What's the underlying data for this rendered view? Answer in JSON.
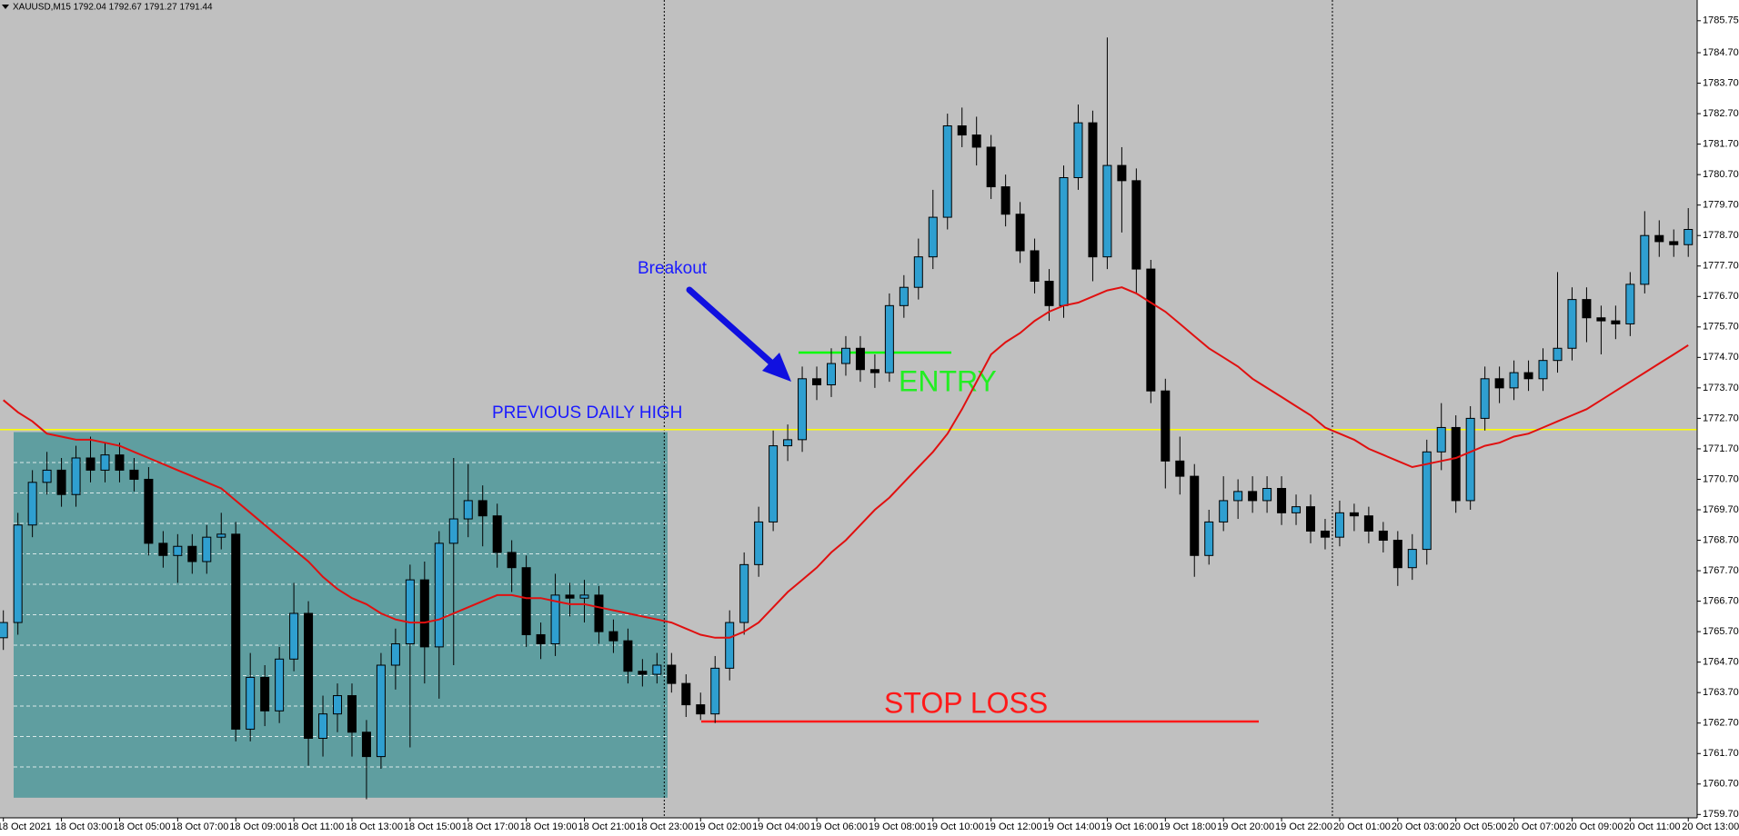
{
  "chart_data": {
    "type": "candlestick",
    "title": "XAUUSD,M15  1792.04 1792.67 1791.27 1791.44",
    "categories": [
      "18 Oct 2021",
      null,
      null,
      null,
      "18 Oct 03:00",
      null,
      null,
      null,
      "18 Oct 05:00",
      null,
      null,
      null,
      "18 Oct 07:00",
      null,
      null,
      null,
      "18 Oct 09:00",
      null,
      null,
      null,
      "18 Oct 11:00",
      null,
      null,
      null,
      "18 Oct 13:00",
      null,
      null,
      null,
      "18 Oct 15:00",
      null,
      null,
      null,
      "18 Oct 17:00",
      null,
      null,
      null,
      "18 Oct 19:00",
      null,
      null,
      null,
      "18 Oct 21:00",
      null,
      null,
      null,
      "18 Oct 23:00",
      null,
      null,
      null,
      "19 Oct 02:00",
      null,
      null,
      null,
      "19 Oct 04:00",
      null,
      null,
      null,
      "19 Oct 06:00",
      null,
      null,
      null,
      "19 Oct 08:00",
      null,
      null,
      null,
      "19 Oct 10:00",
      null,
      null,
      null,
      "19 Oct 12:00",
      null,
      null,
      null,
      "19 Oct 14:00",
      null,
      null,
      null,
      "19 Oct 16:00",
      null,
      null,
      null,
      "19 Oct 18:00",
      null,
      null,
      null,
      "19 Oct 20:00",
      null,
      null,
      null,
      "19 Oct 22:00",
      null,
      null,
      null,
      "20 Oct 01:00",
      null,
      null,
      null,
      "20 Oct 03:00",
      null,
      null,
      null,
      "20 Oct 05:00",
      null,
      null,
      null,
      "20 Oct 07:00",
      null,
      null,
      null,
      "20 Oct 09:00",
      null,
      null,
      null,
      "20 Oct 11:00",
      null,
      null,
      null,
      "20 Oct 13:00"
    ],
    "open": [
      1765.5,
      1766.0,
      1769.2,
      1770.6,
      1771.0,
      1770.2,
      1771.4,
      1771.0,
      1771.5,
      1771.0,
      1770.7,
      1768.6,
      1768.2,
      1768.5,
      1768.0,
      1768.8,
      1768.9,
      1762.5,
      1764.2,
      1763.1,
      1764.8,
      1766.3,
      1762.2,
      1763.0,
      1763.6,
      1762.4,
      1761.6,
      1764.6,
      1765.3,
      1767.4,
      1765.2,
      1768.6,
      1769.4,
      1770.0,
      1769.5,
      1768.3,
      1767.8,
      1765.6,
      1765.3,
      1766.9,
      1766.8,
      1766.9,
      1765.7,
      1765.4,
      1764.4,
      1764.3,
      1764.6,
      1764.0,
      1763.3,
      1763.0,
      1764.5,
      1766.0,
      1767.9,
      1769.3,
      1771.8,
      1772.0,
      1774.0,
      1773.8,
      1774.5,
      1775.0,
      1774.3,
      1774.2,
      1776.4,
      1777.0,
      1778.0,
      1779.3,
      1782.3,
      1782.0,
      1781.6,
      1780.3,
      1779.4,
      1778.2,
      1777.2,
      1776.4,
      1780.6,
      1782.4,
      1778.0,
      1781.0,
      1780.5,
      1777.6,
      1773.6,
      1771.3,
      1770.8,
      1768.2,
      1769.3,
      1770.0,
      1770.3,
      1770.0,
      1770.4,
      1769.6,
      1769.8,
      1769.0,
      1768.8,
      1769.6,
      1769.5,
      1769.0,
      1768.7,
      1767.8,
      1768.4,
      1771.6,
      1772.4,
      1770.0,
      1772.7,
      1774.0,
      1773.7,
      1774.2,
      1774.0,
      1774.6,
      1775.0,
      1776.6,
      1776.0,
      1775.9,
      1775.8,
      1777.1,
      1778.7,
      1778.5,
      1778.4
    ],
    "high": [
      1766.4,
      1769.6,
      1771.0,
      1771.6,
      1771.4,
      1771.8,
      1772.1,
      1771.9,
      1771.9,
      1771.4,
      1771.1,
      1769.0,
      1768.9,
      1768.9,
      1769.2,
      1769.6,
      1769.3,
      1765.0,
      1764.6,
      1765.2,
      1767.3,
      1766.7,
      1763.6,
      1764.0,
      1764.0,
      1762.8,
      1765.0,
      1765.8,
      1767.9,
      1768.0,
      1769.0,
      1771.4,
      1771.2,
      1770.5,
      1769.9,
      1768.7,
      1768.2,
      1766.0,
      1767.6,
      1767.3,
      1767.4,
      1767.2,
      1766.1,
      1765.8,
      1764.8,
      1765.0,
      1765.0,
      1764.3,
      1763.7,
      1764.9,
      1766.4,
      1768.3,
      1769.8,
      1772.3,
      1772.5,
      1774.4,
      1774.4,
      1775.0,
      1775.4,
      1775.4,
      1774.8,
      1776.8,
      1777.4,
      1778.6,
      1780.2,
      1782.7,
      1782.9,
      1782.6,
      1782.0,
      1780.7,
      1779.8,
      1778.6,
      1777.6,
      1781.0,
      1783.0,
      1782.8,
      1785.2,
      1781.6,
      1780.9,
      1777.9,
      1774.0,
      1772.1,
      1771.2,
      1769.7,
      1770.8,
      1770.7,
      1770.8,
      1770.8,
      1770.8,
      1770.2,
      1770.2,
      1769.4,
      1770.0,
      1769.9,
      1769.8,
      1769.3,
      1769.0,
      1768.9,
      1772.0,
      1773.2,
      1772.8,
      1773.1,
      1774.4,
      1774.4,
      1774.6,
      1774.6,
      1775.0,
      1777.5,
      1777.0,
      1777.0,
      1776.4,
      1776.4,
      1777.5,
      1779.5,
      1779.2,
      1778.9,
      1779.6
    ],
    "low": [
      1765.1,
      1765.6,
      1768.8,
      1770.2,
      1769.8,
      1769.8,
      1770.6,
      1770.6,
      1770.6,
      1770.3,
      1768.2,
      1767.8,
      1767.3,
      1767.6,
      1767.6,
      1768.4,
      1762.1,
      1762.1,
      1762.6,
      1762.7,
      1764.4,
      1761.3,
      1761.6,
      1762.4,
      1761.6,
      1760.2,
      1761.2,
      1763.8,
      1761.9,
      1764.0,
      1763.5,
      1764.6,
      1768.8,
      1768.5,
      1767.8,
      1767.0,
      1765.2,
      1764.8,
      1764.9,
      1766.2,
      1766.0,
      1765.3,
      1765.0,
      1764.0,
      1763.9,
      1764.0,
      1763.7,
      1762.9,
      1762.8,
      1762.7,
      1764.1,
      1765.6,
      1767.5,
      1769.0,
      1771.3,
      1771.6,
      1773.3,
      1773.4,
      1774.1,
      1773.9,
      1773.7,
      1773.9,
      1776.0,
      1776.6,
      1777.6,
      1778.9,
      1781.6,
      1781.0,
      1779.9,
      1779.0,
      1777.8,
      1776.8,
      1775.9,
      1776.0,
      1780.2,
      1777.2,
      1777.6,
      1778.8,
      1776.8,
      1773.2,
      1770.4,
      1770.2,
      1767.5,
      1767.9,
      1769.0,
      1769.4,
      1769.6,
      1769.6,
      1769.2,
      1769.2,
      1768.6,
      1768.4,
      1768.5,
      1769.0,
      1768.6,
      1768.3,
      1767.2,
      1767.4,
      1767.9,
      1771.0,
      1769.6,
      1769.7,
      1772.3,
      1773.2,
      1773.3,
      1773.6,
      1773.6,
      1774.2,
      1774.6,
      1775.2,
      1774.8,
      1775.3,
      1775.4,
      1776.8,
      1778.0,
      1778.0,
      1778.0
    ],
    "close": [
      1766.0,
      1769.2,
      1770.6,
      1771.0,
      1770.2,
      1771.4,
      1771.0,
      1771.5,
      1771.0,
      1770.7,
      1768.6,
      1768.2,
      1768.5,
      1768.0,
      1768.8,
      1768.9,
      1762.5,
      1764.2,
      1763.1,
      1764.8,
      1766.3,
      1762.2,
      1763.0,
      1763.6,
      1762.4,
      1761.6,
      1764.6,
      1765.3,
      1767.4,
      1765.2,
      1768.6,
      1769.4,
      1770.0,
      1769.5,
      1768.3,
      1767.8,
      1765.6,
      1765.3,
      1766.9,
      1766.8,
      1766.9,
      1765.7,
      1765.4,
      1764.4,
      1764.3,
      1764.6,
      1764.0,
      1763.3,
      1763.0,
      1764.5,
      1766.0,
      1767.9,
      1769.3,
      1771.8,
      1772.0,
      1774.0,
      1773.8,
      1774.5,
      1775.0,
      1774.3,
      1774.2,
      1776.4,
      1777.0,
      1778.0,
      1779.3,
      1782.3,
      1782.0,
      1781.6,
      1780.3,
      1779.4,
      1778.2,
      1777.2,
      1776.4,
      1780.6,
      1782.4,
      1778.0,
      1781.0,
      1780.5,
      1777.6,
      1773.6,
      1771.3,
      1770.8,
      1768.2,
      1769.3,
      1770.0,
      1770.3,
      1770.0,
      1770.4,
      1769.6,
      1769.8,
      1769.0,
      1768.8,
      1769.6,
      1769.5,
      1769.0,
      1768.7,
      1767.8,
      1768.4,
      1771.6,
      1772.4,
      1770.0,
      1772.7,
      1774.0,
      1773.7,
      1774.2,
      1774.0,
      1774.6,
      1775.0,
      1776.6,
      1776.0,
      1775.9,
      1775.8,
      1777.1,
      1778.7,
      1778.5,
      1778.4,
      1778.9
    ],
    "up_color": "#2f9fd0",
    "down_color": "#000000",
    "ma": {
      "color": "#e01010",
      "values": [
        1773.3,
        1772.9,
        1772.6,
        1772.2,
        1772.1,
        1772.0,
        1772.0,
        1771.9,
        1771.8,
        1771.6,
        1771.4,
        1771.2,
        1771.0,
        1770.8,
        1770.6,
        1770.4,
        1770.0,
        1769.6,
        1769.2,
        1768.8,
        1768.4,
        1768.0,
        1767.5,
        1767.1,
        1766.8,
        1766.6,
        1766.3,
        1766.1,
        1766.0,
        1766.0,
        1766.1,
        1766.3,
        1766.5,
        1766.7,
        1766.9,
        1766.9,
        1766.8,
        1766.8,
        1766.7,
        1766.6,
        1766.6,
        1766.5,
        1766.4,
        1766.3,
        1766.2,
        1766.1,
        1766.0,
        1765.8,
        1765.6,
        1765.5,
        1765.5,
        1765.7,
        1766.0,
        1766.5,
        1767.0,
        1767.4,
        1767.8,
        1768.3,
        1768.7,
        1769.2,
        1769.7,
        1770.1,
        1770.6,
        1771.1,
        1771.6,
        1772.2,
        1773.0,
        1773.9,
        1774.8,
        1775.2,
        1775.5,
        1775.9,
        1776.2,
        1776.4,
        1776.5,
        1776.7,
        1776.9,
        1777.0,
        1776.8,
        1776.5,
        1776.2,
        1775.8,
        1775.4,
        1775.0,
        1774.7,
        1774.4,
        1774.0,
        1773.7,
        1773.4,
        1773.1,
        1772.8,
        1772.4,
        1772.2,
        1772.0,
        1771.7,
        1771.5,
        1771.3,
        1771.1,
        1771.2,
        1771.3,
        1771.4,
        1771.6,
        1771.8,
        1771.9,
        1772.1,
        1772.2,
        1772.4,
        1772.6,
        1772.8,
        1773.0,
        1773.3,
        1773.6,
        1773.9,
        1774.2,
        1774.5,
        1774.8,
        1775.1
      ]
    },
    "zone": {
      "color": "#5f9ea0",
      "high": 1772.25,
      "low": 1760.25
    },
    "annotations": [
      {
        "text": "PREVIOUS DAILY HIGH",
        "value": 1772.33,
        "color": "#ffff00",
        "text_color": "#1a1aff"
      },
      {
        "text": "ENTRY",
        "value": 1774.86,
        "color": "#00ff00",
        "text_color": "#22ee22"
      },
      {
        "text": "STOP LOSS",
        "value": 1762.75,
        "color": "#ff1a1a",
        "text_color": "#ff1a1a"
      }
    ],
    "breakout_label": "Breakout",
    "ylim": [
      1759.59,
      1786.43
    ],
    "yticks": [
      1785.75,
      {
        "value": 1784.7,
        "label": "1784.70"
      },
      {
        "value": 1783.7,
        "label": "1783.70"
      },
      {
        "value": 1782.7,
        "label": "1782.70"
      },
      {
        "value": 1781.7,
        "label": "1781.70"
      },
      {
        "value": 1780.7,
        "label": "1780.70"
      },
      {
        "value": 1779.7,
        "label": "1779.70"
      },
      {
        "value": 1778.7,
        "label": "1778.70"
      },
      {
        "value": 1777.7,
        "label": "1777.70"
      },
      {
        "value": 1776.7,
        "label": "1776.70"
      },
      {
        "value": 1775.7,
        "label": "1775.70"
      },
      {
        "value": 1774.7,
        "label": "1774.70"
      },
      {
        "value": 1773.7,
        "label": "1773.70"
      },
      {
        "value": 1772.7,
        "label": "1772.70"
      },
      {
        "value": 1771.7,
        "label": "1771.70"
      },
      {
        "value": 1770.7,
        "label": "1770.70"
      },
      {
        "value": 1769.7,
        "label": "1769.70"
      },
      {
        "value": 1768.7,
        "label": "1768.70"
      },
      {
        "value": 1767.7,
        "label": "1767.70"
      },
      {
        "value": 1766.7,
        "label": "1766.70"
      },
      {
        "value": 1765.7,
        "label": "1765.70"
      },
      {
        "value": 1764.7,
        "label": "1764.70"
      },
      {
        "value": 1763.7,
        "label": "1763.70"
      },
      {
        "value": 1762.7,
        "label": "1762.70"
      },
      {
        "value": 1761.7,
        "label": "1761.70"
      },
      {
        "value": 1760.7,
        "label": "1760.70"
      },
      {
        "value": 1759.7,
        "label": "1759.70"
      }
    ]
  }
}
